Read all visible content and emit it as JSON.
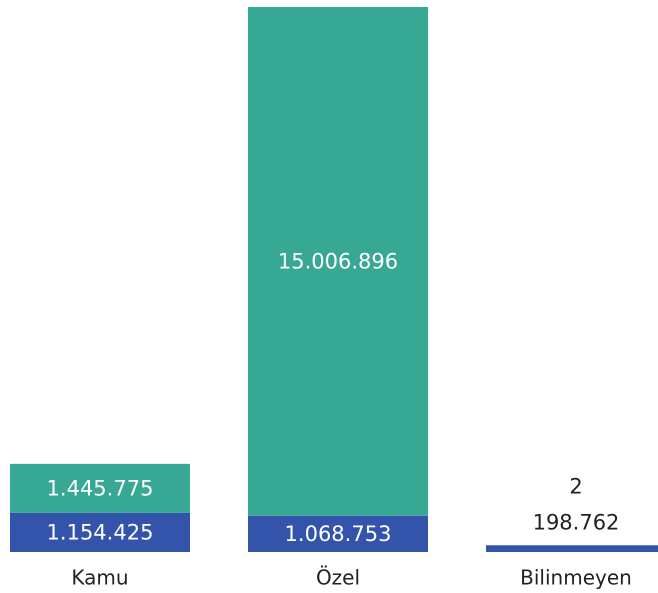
{
  "chart_data": {
    "type": "bar",
    "stacked": true,
    "categories": [
      "Kamu",
      "Özel",
      "Bilinmeyen"
    ],
    "series": [
      {
        "values": [
          1154425,
          1068753,
          198762
        ],
        "labels": [
          "1.154.425",
          "1.068.753",
          "198.762"
        ]
      },
      {
        "values": [
          1445775,
          15006896,
          2
        ],
        "labels": [
          "1.445.775",
          "15.006.896",
          "2"
        ]
      }
    ],
    "colors": [
      "#3454ac",
      "#37a894"
    ],
    "label_color_inside": "#ffffff",
    "label_color_outside": "#222222",
    "ymax": 16075649,
    "axis": {
      "show": false
    },
    "grid": false,
    "legend": "none"
  }
}
